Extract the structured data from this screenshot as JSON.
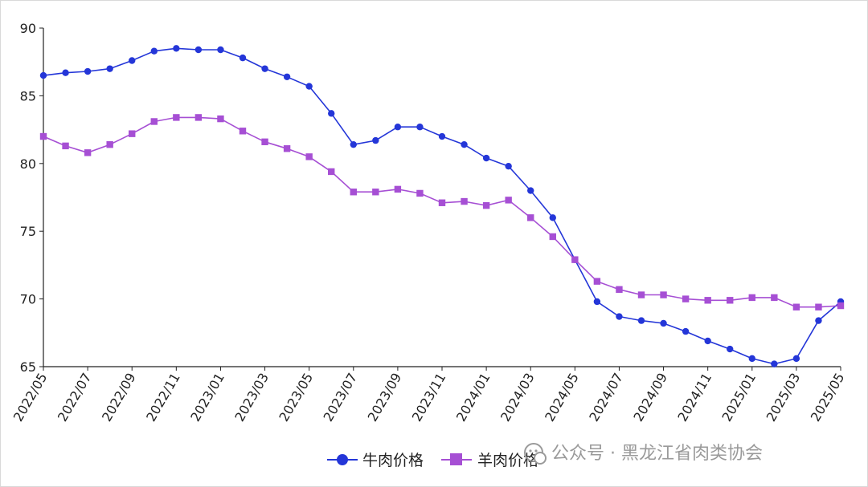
{
  "chart_data": {
    "type": "line",
    "x": [
      "2022/05",
      "2022/06",
      "2022/07",
      "2022/08",
      "2022/09",
      "2022/10",
      "2022/11",
      "2022/12",
      "2023/01",
      "2023/02",
      "2023/03",
      "2023/04",
      "2023/05",
      "2023/06",
      "2023/07",
      "2023/08",
      "2023/09",
      "2023/10",
      "2023/11",
      "2023/12",
      "2024/01",
      "2024/02",
      "2024/03",
      "2024/04",
      "2024/05",
      "2024/06",
      "2024/07",
      "2024/08",
      "2024/09",
      "2024/10",
      "2024/11",
      "2024/12",
      "2025/01",
      "2025/02",
      "2025/03",
      "2025/04",
      "2025/05"
    ],
    "x_tick_labels": [
      "2022/05",
      "2022/07",
      "2022/09",
      "2022/11",
      "2023/01",
      "2023/03",
      "2023/05",
      "2023/07",
      "2023/09",
      "2023/11",
      "2024/01",
      "2024/03",
      "2024/05",
      "2024/07",
      "2024/09",
      "2024/11",
      "2025/01",
      "2025/03",
      "2025/05"
    ],
    "ylim": [
      65,
      90
    ],
    "y_ticks": [
      "65",
      "70",
      "75",
      "80",
      "85",
      "90"
    ],
    "series": [
      {
        "name": "牛肉价格",
        "color": "#2436d8",
        "marker": "circle",
        "values": [
          86.5,
          86.7,
          86.8,
          87.0,
          87.6,
          88.3,
          88.5,
          88.4,
          88.4,
          87.8,
          87.0,
          86.4,
          85.7,
          83.7,
          81.4,
          81.7,
          82.7,
          82.7,
          82.0,
          81.4,
          80.4,
          79.8,
          78.0,
          76.0,
          72.9,
          69.8,
          68.7,
          68.4,
          68.2,
          67.6,
          66.9,
          66.3,
          65.6,
          65.2,
          65.6,
          68.4,
          69.8
        ]
      },
      {
        "name": "羊肉价格",
        "color": "#a64fd4",
        "marker": "square",
        "values": [
          82.0,
          81.3,
          80.8,
          81.4,
          82.2,
          83.1,
          83.4,
          83.4,
          83.3,
          82.4,
          81.6,
          81.1,
          80.5,
          79.4,
          77.9,
          77.9,
          78.1,
          77.8,
          77.1,
          77.2,
          76.9,
          77.3,
          76.0,
          74.6,
          72.9,
          71.3,
          70.7,
          70.3,
          70.3,
          70.0,
          69.9,
          69.9,
          70.1,
          70.1,
          69.4,
          69.4,
          69.5
        ]
      }
    ],
    "grid": false,
    "legend": "bottom-center"
  },
  "watermark": {
    "icon": "wechat-official-account-icon",
    "text": "公众号 · 黑龙江省肉类协会"
  }
}
